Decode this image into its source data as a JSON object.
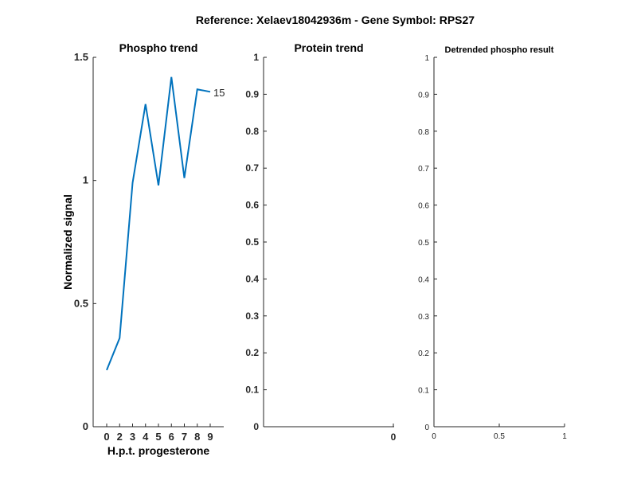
{
  "figure": {
    "suptitle": "Reference:  Xelaev18042936m - Gene Symbol:  RPS27"
  },
  "chart_data": [
    {
      "type": "line",
      "title": "Phospho trend",
      "xlabel": "H.p.t. progesterone",
      "ylabel": "Normalized signal",
      "categories": [
        "0",
        "2",
        "3",
        "4",
        "5",
        "6",
        "7",
        "8",
        "9"
      ],
      "series": [
        {
          "name": "",
          "color": "#0072BD",
          "values": [
            0.23,
            0.36,
            0.99,
            1.31,
            0.98,
            1.42,
            1.01,
            1.37,
            1.36
          ]
        }
      ],
      "annotation": "15",
      "yticks": [
        "0",
        "0.5",
        "1",
        "1.5"
      ],
      "ylim": [
        0,
        1.5
      ],
      "grid": false
    },
    {
      "type": "line",
      "title": "Protein trend",
      "xlabel": "",
      "ylabel": "",
      "categories": [
        "0"
      ],
      "series": [],
      "yticks": [
        "0",
        "0.1",
        "0.2",
        "0.3",
        "0.4",
        "0.5",
        "0.6",
        "0.7",
        "0.8",
        "0.9",
        "1"
      ],
      "ylim": [
        0,
        1
      ],
      "grid": false
    },
    {
      "type": "line",
      "title": "Detrended phospho result",
      "xlabel": "",
      "ylabel": "",
      "xticks": [
        "0",
        "0.5",
        "1"
      ],
      "xlim": [
        0,
        1
      ],
      "series": [],
      "yticks": [
        "0",
        "0.1",
        "0.2",
        "0.3",
        "0.4",
        "0.5",
        "0.6",
        "0.7",
        "0.8",
        "0.9",
        "1"
      ],
      "ylim": [
        0,
        1
      ],
      "grid": false
    }
  ]
}
